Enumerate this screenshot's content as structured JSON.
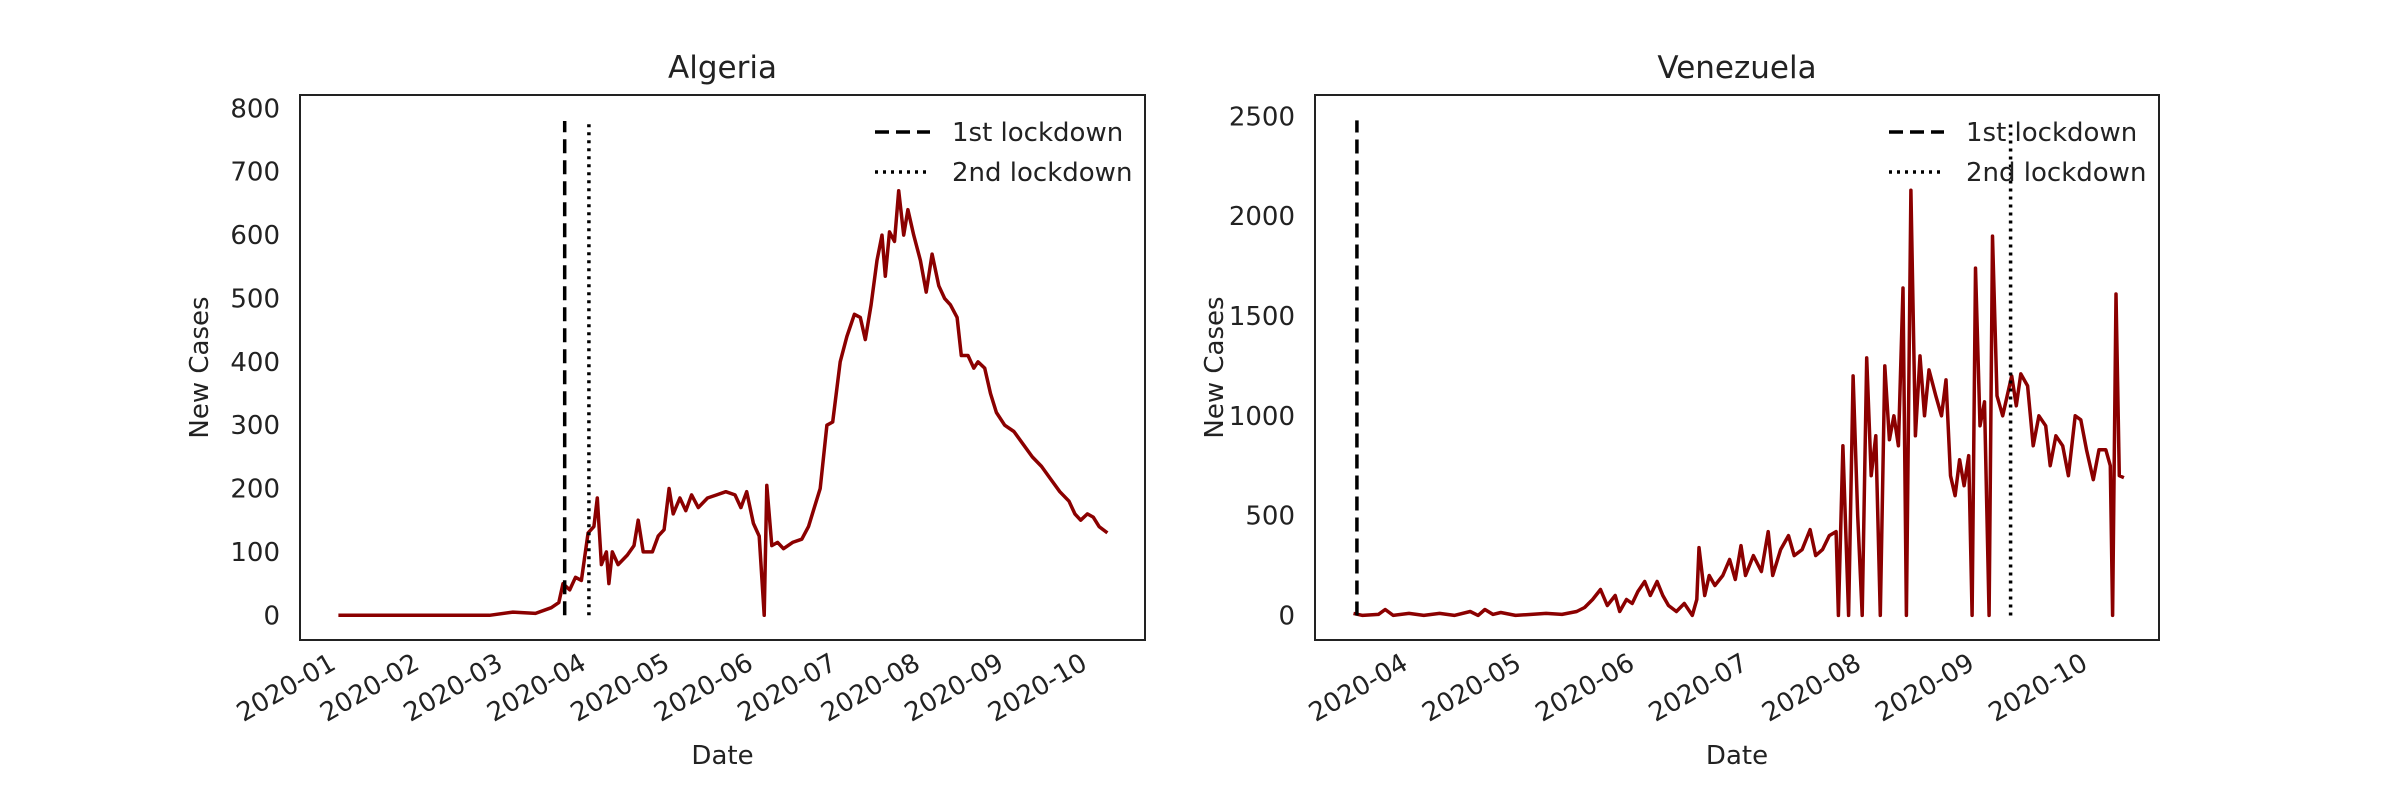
{
  "chart_data": [
    {
      "type": "line",
      "title": "Algeria",
      "xlabel": "Date",
      "ylabel": "New Cases",
      "color": "#8b0000",
      "xlim": [
        0.6,
        10.72
      ],
      "ylim": [
        -39,
        821
      ],
      "xticks": [
        {
          "value": 1,
          "label": "2020-01"
        },
        {
          "value": 2,
          "label": "2020-02"
        },
        {
          "value": 3,
          "label": "2020-03"
        },
        {
          "value": 4,
          "label": "2020-04"
        },
        {
          "value": 5,
          "label": "2020-05"
        },
        {
          "value": 6,
          "label": "2020-06"
        },
        {
          "value": 7,
          "label": "2020-07"
        },
        {
          "value": 8,
          "label": "2020-08"
        },
        {
          "value": 9,
          "label": "2020-09"
        },
        {
          "value": 10,
          "label": "2020-10"
        }
      ],
      "yticks": [
        0,
        100,
        200,
        300,
        400,
        500,
        600,
        700,
        800
      ],
      "legend": "upper right",
      "vlines": [
        {
          "name": "1st lockdown",
          "x": 3.77,
          "ymax": 780,
          "style": "dashed"
        },
        {
          "name": "2nd lockdown",
          "x": 4.06,
          "ymax": 780,
          "style": "dotted"
        }
      ],
      "x": [
        1.06,
        2.87,
        3.15,
        3.42,
        3.61,
        3.7,
        3.75,
        3.83,
        3.9,
        3.97,
        4.05,
        4.12,
        4.16,
        4.21,
        4.27,
        4.3,
        4.34,
        4.41,
        4.52,
        4.6,
        4.65,
        4.71,
        4.82,
        4.89,
        4.96,
        5.02,
        5.07,
        5.15,
        5.22,
        5.29,
        5.37,
        5.48,
        5.59,
        5.7,
        5.81,
        5.88,
        5.95,
        6.03,
        6.1,
        6.16,
        6.19,
        6.25,
        6.32,
        6.39,
        6.5,
        6.61,
        6.69,
        6.76,
        6.83,
        6.91,
        6.98,
        7.07,
        7.15,
        7.24,
        7.31,
        7.37,
        7.44,
        7.51,
        7.57,
        7.61,
        7.66,
        7.72,
        7.77,
        7.83,
        7.88,
        7.95,
        8.03,
        8.1,
        8.17,
        8.25,
        8.32,
        8.39,
        8.47,
        8.52,
        8.6,
        8.67,
        8.72,
        8.8,
        8.87,
        8.94,
        9.04,
        9.15,
        9.26,
        9.37,
        9.48,
        9.59,
        9.7,
        9.81,
        9.88,
        9.95,
        10.03,
        10.1,
        10.17,
        10.27
      ],
      "values": [
        0,
        0,
        5,
        3,
        12,
        20,
        50,
        40,
        60,
        55,
        130,
        140,
        185,
        80,
        100,
        50,
        100,
        80,
        95,
        110,
        150,
        100,
        100,
        125,
        135,
        200,
        160,
        185,
        165,
        190,
        170,
        185,
        190,
        195,
        190,
        170,
        195,
        145,
        125,
        0,
        205,
        110,
        115,
        105,
        115,
        120,
        140,
        170,
        200,
        300,
        305,
        400,
        440,
        475,
        470,
        435,
        490,
        560,
        600,
        535,
        605,
        590,
        670,
        600,
        640,
        600,
        560,
        510,
        570,
        520,
        500,
        490,
        470,
        410,
        410,
        390,
        400,
        390,
        350,
        320,
        300,
        290,
        270,
        250,
        235,
        215,
        195,
        180,
        160,
        150,
        160,
        155,
        140,
        130
      ]
    },
    {
      "type": "line",
      "title": "Venezuela",
      "xlabel": "Date",
      "ylabel": "New Cases",
      "color": "#8b0000",
      "xlim": [
        3.2,
        10.65
      ],
      "ylim": [
        -123,
        2607
      ],
      "xticks": [
        {
          "value": 4,
          "label": "2020-04"
        },
        {
          "value": 5,
          "label": "2020-05"
        },
        {
          "value": 6,
          "label": "2020-06"
        },
        {
          "value": 7,
          "label": "2020-07"
        },
        {
          "value": 8,
          "label": "2020-08"
        },
        {
          "value": 9,
          "label": "2020-09"
        },
        {
          "value": 10,
          "label": "2020-10"
        }
      ],
      "yticks": [
        0,
        500,
        1000,
        1500,
        2000,
        2500
      ],
      "legend": "upper right",
      "vlines": [
        {
          "name": "1st lockdown",
          "x": 3.57,
          "ymax": 2480,
          "style": "dashed"
        },
        {
          "name": "2nd lockdown",
          "x": 9.34,
          "ymax": 2480,
          "style": "dotted"
        }
      ],
      "x": [
        3.54,
        3.62,
        3.76,
        3.82,
        3.89,
        4.03,
        4.16,
        4.3,
        4.43,
        4.57,
        4.64,
        4.7,
        4.77,
        4.84,
        4.97,
        5.11,
        5.24,
        5.38,
        5.51,
        5.58,
        5.65,
        5.72,
        5.78,
        5.85,
        5.89,
        5.95,
        6.0,
        6.05,
        6.11,
        6.16,
        6.22,
        6.27,
        6.32,
        6.39,
        6.46,
        6.53,
        6.57,
        6.59,
        6.64,
        6.68,
        6.73,
        6.8,
        6.86,
        6.91,
        6.96,
        7.0,
        7.07,
        7.14,
        7.2,
        7.24,
        7.31,
        7.38,
        7.43,
        7.5,
        7.57,
        7.62,
        7.68,
        7.74,
        7.8,
        7.82,
        7.86,
        7.91,
        7.95,
        7.99,
        8.03,
        8.07,
        8.11,
        8.15,
        8.19,
        8.23,
        8.27,
        8.31,
        8.35,
        8.39,
        8.42,
        8.46,
        8.5,
        8.54,
        8.58,
        8.62,
        8.68,
        8.73,
        8.77,
        8.81,
        8.85,
        8.89,
        8.93,
        8.97,
        9.0,
        9.03,
        9.07,
        9.11,
        9.15,
        9.18,
        9.22,
        9.27,
        9.31,
        9.35,
        9.39,
        9.43,
        9.49,
        9.54,
        9.59,
        9.65,
        9.69,
        9.74,
        9.8,
        9.85,
        9.91,
        9.96,
        10.01,
        10.07,
        10.12,
        10.18,
        10.22,
        10.24,
        10.27,
        10.3,
        10.34
      ],
      "values": [
        10,
        0,
        5,
        30,
        0,
        10,
        0,
        10,
        0,
        20,
        0,
        30,
        5,
        15,
        0,
        5,
        10,
        5,
        20,
        40,
        80,
        130,
        50,
        100,
        20,
        80,
        60,
        120,
        170,
        100,
        170,
        100,
        50,
        20,
        60,
        0,
        80,
        340,
        100,
        200,
        150,
        200,
        280,
        180,
        350,
        200,
        300,
        220,
        420,
        200,
        330,
        400,
        300,
        330,
        430,
        300,
        330,
        400,
        420,
        0,
        850,
        0,
        1200,
        500,
        0,
        1290,
        700,
        900,
        0,
        1250,
        880,
        1000,
        850,
        1640,
        0,
        2130,
        900,
        1300,
        1000,
        1230,
        1100,
        1000,
        1180,
        700,
        600,
        780,
        650,
        800,
        0,
        1740,
        950,
        1070,
        0,
        1900,
        1100,
        1000,
        1100,
        1200,
        1050,
        1210,
        1150,
        850,
        1000,
        950,
        750,
        900,
        850,
        700,
        1000,
        980,
        830,
        680,
        830,
        830,
        750,
        0,
        1610,
        700,
        690
      ]
    }
  ]
}
